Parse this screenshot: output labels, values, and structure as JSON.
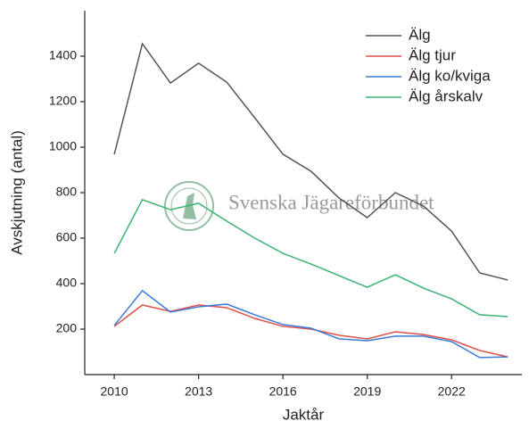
{
  "chart_data": {
    "type": "line",
    "x_label": "Jaktår",
    "y_label": "Avskjutning (antal)",
    "watermark": "Svenska Jägareförbundet",
    "x": [
      2010,
      2011,
      2012,
      2013,
      2014,
      2015,
      2016,
      2017,
      2018,
      2019,
      2020,
      2021,
      2022,
      2023,
      2024
    ],
    "series": [
      {
        "name": "Älg",
        "color": "#555555",
        "values": [
          968,
          1455,
          1282,
          1369,
          1286,
          1129,
          969,
          894,
          776,
          690,
          800,
          741,
          631,
          447,
          416
        ]
      },
      {
        "name": "Älg tjur",
        "color": "#e0504a",
        "values": [
          212,
          306,
          278,
          306,
          294,
          247,
          212,
          200,
          173,
          157,
          188,
          176,
          153,
          106,
          78
        ]
      },
      {
        "name": "Älg ko/kviga",
        "color": "#3a7bd5",
        "values": [
          216,
          369,
          275,
          298,
          310,
          263,
          220,
          204,
          157,
          149,
          169,
          169,
          145,
          75,
          78
        ]
      },
      {
        "name": "Älg årskalv",
        "color": "#3cb371",
        "values": [
          533,
          769,
          725,
          753,
          675,
          600,
          533,
          486,
          435,
          384,
          439,
          380,
          333,
          263,
          255
        ]
      }
    ],
    "xlim": [
      2008.95,
      2024.5
    ],
    "xticks": [
      2010,
      2013,
      2016,
      2019,
      2022
    ],
    "ylim": [
      0,
      1600
    ],
    "yticks": [
      200,
      400,
      600,
      800,
      1000,
      1200,
      1400
    ],
    "legend": "upper right",
    "grid": false
  }
}
